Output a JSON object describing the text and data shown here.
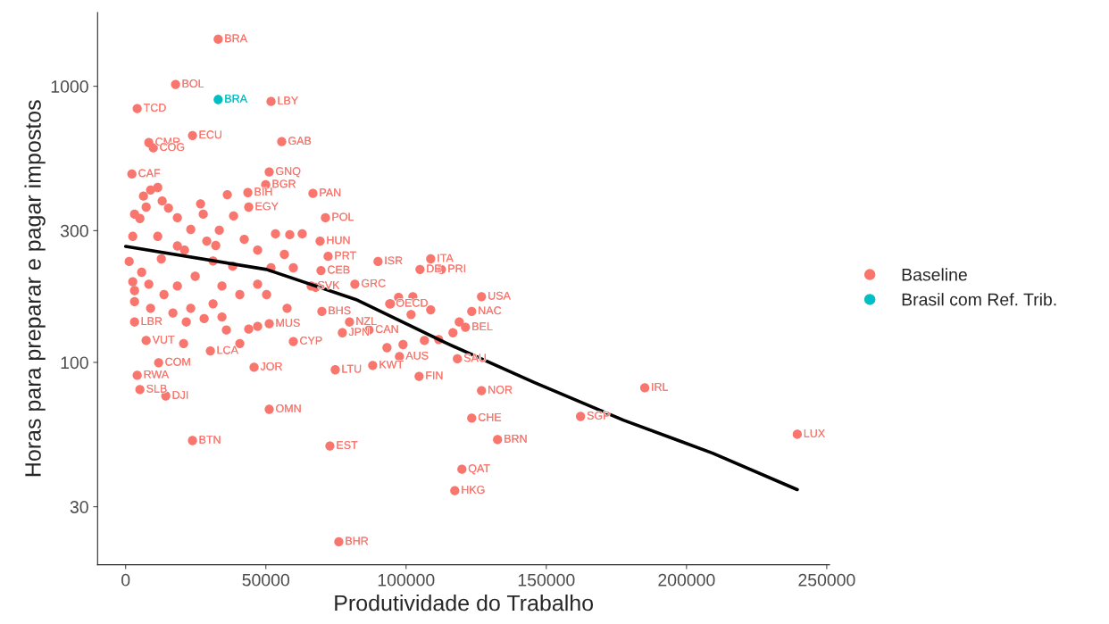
{
  "chart_data": {
    "type": "scatter",
    "xlabel": "Produtividade do Trabalho",
    "ylabel": "Horas para preparar e pagar impostos",
    "log": "y",
    "xlim": [
      -10000,
      251000
    ],
    "ylim": [
      18.5,
      1850
    ],
    "xticks": [
      0,
      50000,
      100000,
      150000,
      200000,
      250000
    ],
    "yticks": [
      30,
      100,
      300,
      1000
    ],
    "legend": "right",
    "marker": "circle",
    "series": [
      {
        "name": "Baseline",
        "color": "#f8766d",
        "x": [
          33000,
          17800,
          4130,
          23850,
          8270,
          9860,
          51850,
          55660,
          2230,
          51200,
          49940,
          66790,
          43580,
          43890,
          71250,
          69340,
          72200,
          108780,
          104960,
          112600,
          90000,
          126900,
          123410,
          121180,
          81740,
          94150,
          77290,
          74750,
          88100,
          104640,
          97650,
          118300,
          126900,
          123410,
          162210,
          185110,
          239500,
          132630,
          119910,
          117370,
          72840,
          23850,
          51210,
          76020,
          45800,
          59800,
          11770,
          4130,
          5090,
          14310,
          7320,
          3180,
          30220,
          51210,
          69970,
          79830,
          86800,
          66160,
          69660,
          101780,
          98920,
          93190,
          111640,
          106550,
          116730,
          118960,
          108780,
          102420,
          97330,
          94470,
          1270,
          2540,
          3180,
          5090,
          7320,
          6360,
          8900,
          11450,
          13040,
          15270,
          18450,
          23220,
          26720,
          36260,
          38490,
          33400,
          28940,
          20990,
          12720,
          5720,
          2540,
          3180,
          3180,
          8900,
          16860,
          23220,
          31170,
          40710,
          47070,
          51840,
          47070,
          42300,
          53430,
          58520,
          62970,
          56610,
          59800,
          57570,
          67750,
          38170,
          31170,
          24810,
          18450,
          13680,
          34350,
          40710,
          35940,
          47070,
          27990,
          21630,
          20670,
          43890,
          34350,
          50260,
          8270,
          11450,
          18450,
          27670,
          32130
        ],
        "values": [
          1480,
          1015,
          830,
          663,
          625,
          598,
          881,
          630,
          481,
          489,
          440,
          409,
          412,
          365,
          334,
          275,
          242,
          237,
          217,
          217,
          232,
          173,
          153,
          134,
          192,
          163,
          128,
          94,
          97.5,
          89,
          105,
          103,
          79,
          62.8,
          63.7,
          80.9,
          54.9,
          52.5,
          41,
          34.3,
          49.8,
          52.1,
          67.6,
          22.4,
          96,
          119,
          99.7,
          89.8,
          79.7,
          75.6,
          120,
          140,
          110,
          138,
          153,
          140,
          131,
          189,
          215,
          149,
          116,
          113,
          121,
          120,
          128,
          140,
          155,
          173,
          172,
          163,
          232,
          286,
          344,
          332,
          365,
          400,
          421,
          430,
          384,
          362,
          334,
          303,
          375,
          405,
          339,
          301,
          275,
          255,
          237,
          212,
          196,
          182,
          166,
          157,
          151,
          157,
          163,
          176,
          192,
          220,
          255,
          279,
          292,
          290,
          292,
          246,
          220,
          157,
          187,
          223,
          233,
          205,
          189,
          176,
          146,
          117,
          131,
          135,
          144,
          140,
          117,
          132,
          189,
          176,
          192,
          286,
          264,
          344,
          265
        ],
        "value_labels": [
          "BRA",
          "BOL",
          "TCD",
          "ECU",
          "CMR",
          "COG",
          "LBY",
          "GAB",
          "CAF",
          "GNQ",
          "BGR",
          "PAN",
          "BIH",
          "EGY",
          "POL",
          "HUN",
          "PRT",
          "ITA",
          "DE",
          "PRI",
          "ISR",
          "USA",
          "NAC",
          "BEL",
          "GRC",
          "OECD",
          "JPN",
          "LTU",
          "KWT",
          "FIN",
          "AUS",
          "SAU",
          "NOR",
          "CHE",
          "SGP",
          "IRL",
          "LUX",
          "BRN",
          "QAT",
          "HKG",
          "EST",
          "BTN",
          "OMN",
          "BHR",
          "JOR",
          "CYP",
          "COM",
          "RWA",
          "SLB",
          "DJI",
          "VUT",
          "LBR",
          "LCA",
          "MUS",
          "BHS",
          "NZL",
          "CAN",
          "SVK",
          "CEB",
          null,
          null,
          null,
          null,
          null,
          null,
          null,
          null,
          null,
          null,
          null,
          null,
          null,
          null,
          null,
          null,
          null,
          null,
          null,
          null,
          null,
          null,
          null,
          null,
          null,
          null,
          null,
          null,
          null,
          null,
          null,
          null,
          null,
          null,
          null,
          null,
          null,
          null,
          null,
          null,
          null,
          null,
          null,
          null,
          null,
          null,
          null,
          null,
          null,
          null,
          null,
          null,
          null,
          null,
          null,
          null,
          null,
          null,
          null,
          null,
          null,
          null,
          null,
          null,
          null,
          null,
          null,
          null,
          null,
          null
        ]
      },
      {
        "name": "Brasil com Ref. Trib.",
        "color": "#00bfc4",
        "x": [
          33000
        ],
        "values": [
          895
        ],
        "value_labels": [
          "BRA"
        ]
      },
      {
        "color": "#000000",
        "type": "line",
        "marker": "none",
        "x": [
          0,
          50260,
          82060,
          113870,
          145670,
          177480,
          209290,
          239500
        ],
        "values": [
          263,
          217,
          169,
          118,
          84.6,
          61.8,
          46.9,
          34.6
        ]
      }
    ]
  }
}
